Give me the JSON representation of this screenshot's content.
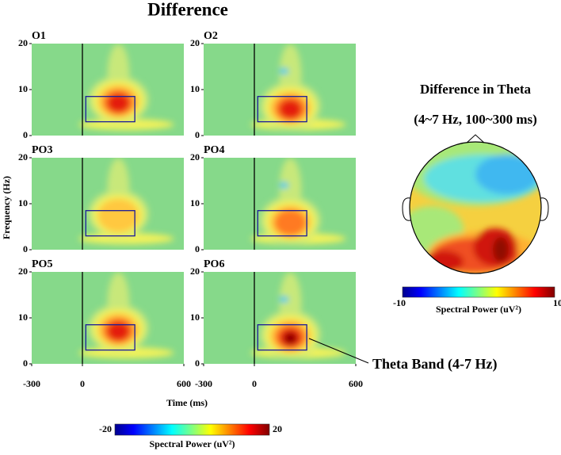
{
  "title": "Difference",
  "chart_data": [
    {
      "type": "heatmap",
      "panels": [
        "O1",
        "O2",
        "PO3",
        "PO4",
        "PO5",
        "PO6"
      ],
      "xlabel": "Time (ms)",
      "ylabel": "Frequency (Hz)",
      "xlim": [
        -300,
        600
      ],
      "xticks": [
        -300,
        0,
        600
      ],
      "ylim": [
        0,
        20
      ],
      "yticks": [
        0,
        10,
        20
      ],
      "box": {
        "x": [
          20,
          310
        ],
        "y": [
          3,
          8.5
        ]
      },
      "annotation": "Theta Band (4-7 Hz)",
      "colorbar": {
        "lim": [
          -20,
          20
        ],
        "ticks": [
          -20,
          20
        ],
        "label": "Spectral Power (uV²)"
      }
    },
    {
      "type": "topomap",
      "title": "Difference in Theta",
      "subtitle": "(4~7 Hz, 100~300 ms)",
      "colorbar": {
        "lim": [
          -10,
          10
        ],
        "ticks": [
          -10,
          10
        ],
        "label": "Spectral Power (uV²)"
      }
    }
  ]
}
